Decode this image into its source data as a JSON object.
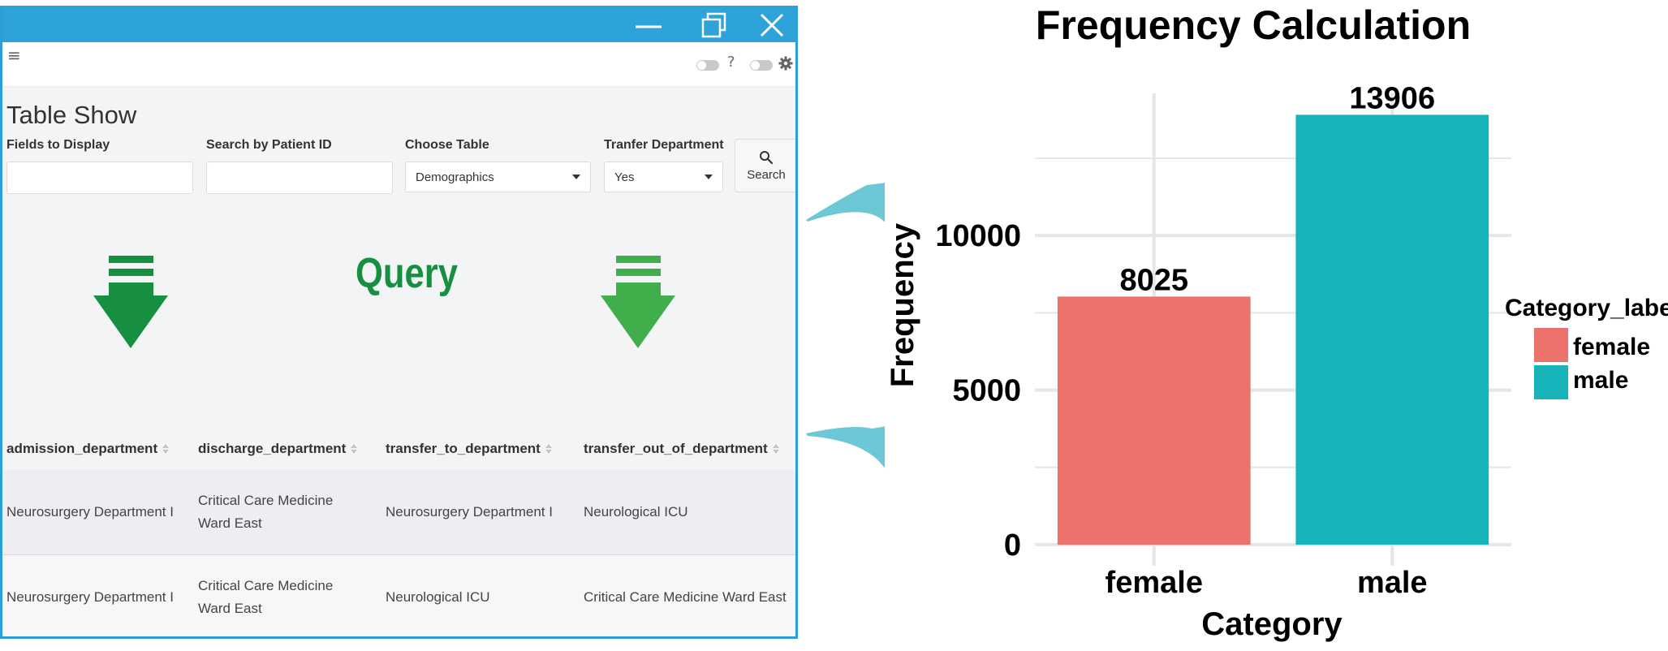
{
  "window": {
    "controls": {
      "minimize_icon": "minimize-icon",
      "restore_icon": "restore-icon",
      "close_icon": "close-icon",
      "color": "#2ea3d9"
    }
  },
  "appbar": {
    "menu_icon": "hamburger-icon",
    "help_label": "?",
    "settings_icon": "gear-icon"
  },
  "page": {
    "title": "Table Show",
    "fields": {
      "fields_to_display": {
        "label": "Fields to Display",
        "value": ""
      },
      "search_by_patient_id": {
        "label": "Search by Patient ID",
        "value": ""
      },
      "choose_table": {
        "label": "Choose Table",
        "value": "Demographics"
      },
      "transfer_department": {
        "label": "Tranfer Department",
        "value": "Yes"
      }
    },
    "search_button": {
      "label": "Search",
      "icon": "search-icon"
    }
  },
  "overlay": {
    "query_label": "Query",
    "left_arrow_color": "#178f41",
    "right_arrow_color": "#3fae4b",
    "connector_color": "#6cc7d6"
  },
  "table": {
    "columns": [
      "admission_department",
      "discharge_department",
      "transfer_to_department",
      "transfer_out_of_department"
    ],
    "rows": [
      [
        "Neurosurgery Department I",
        "Critical Care Medicine Ward East",
        "Neurosurgery Department I",
        "Neurological ICU"
      ],
      [
        "Neurosurgery Department I",
        "Critical Care Medicine Ward East",
        "Neurological ICU",
        "Critical Care Medicine Ward East"
      ]
    ]
  },
  "chart_data": {
    "type": "bar",
    "title": "Frequency Calculation",
    "xlabel": "Category",
    "ylabel": "Frequency",
    "categories": [
      "female",
      "male"
    ],
    "values": [
      8025,
      13906
    ],
    "data_labels": [
      "8025",
      "13906"
    ],
    "colors": [
      "#ec736b",
      "#16b4b9"
    ],
    "yticks": [
      0,
      5000,
      10000
    ],
    "ytick_labels": [
      "0",
      "5000",
      "10000"
    ],
    "ylim": [
      0,
      14600
    ],
    "grid": true,
    "legend": {
      "title": "Category_labels",
      "position": "right",
      "entries": [
        "female",
        "male"
      ]
    }
  }
}
